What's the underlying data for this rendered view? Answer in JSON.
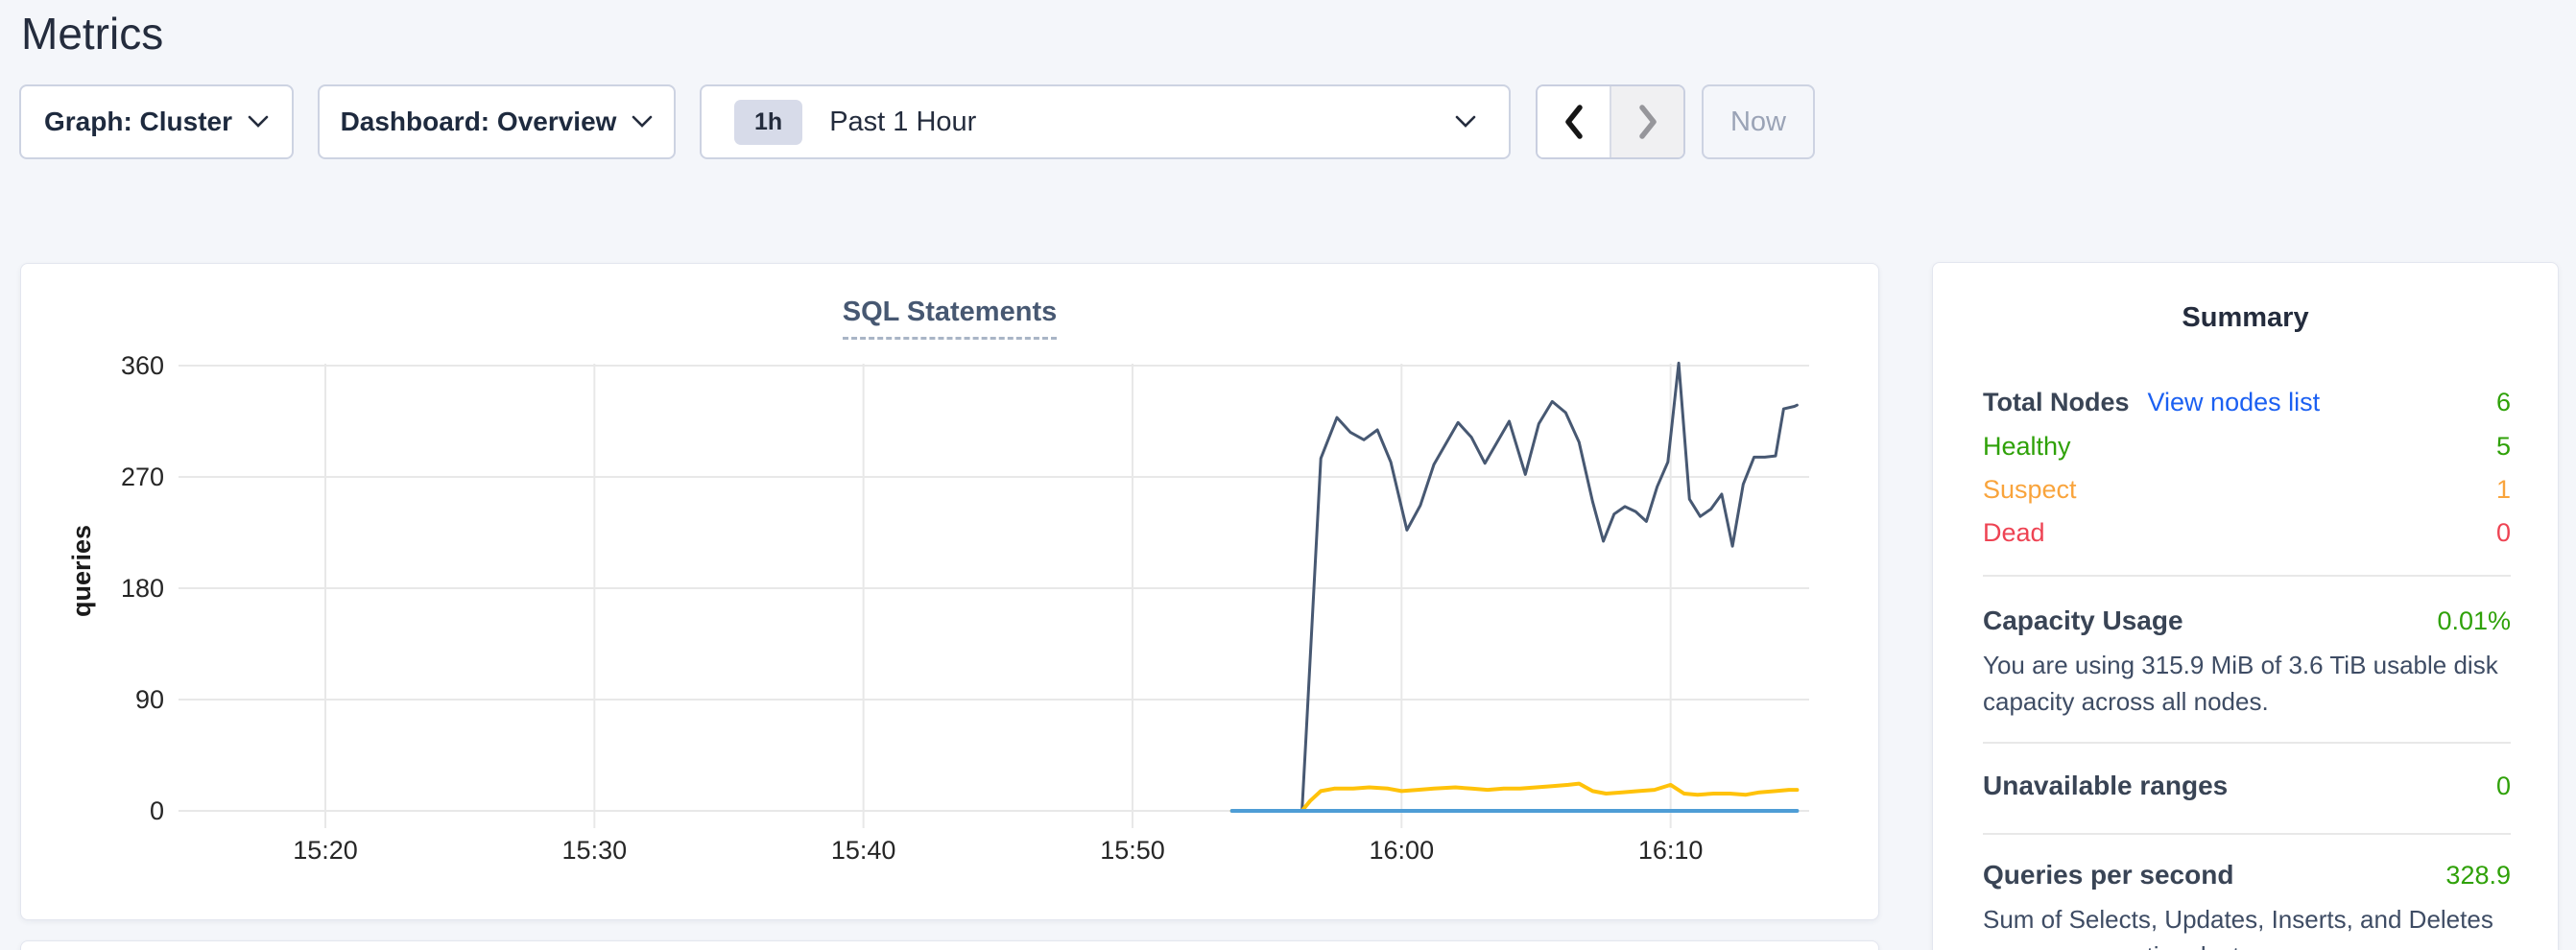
{
  "page": {
    "title": "Metrics",
    "background_color": "#f4f6fa"
  },
  "toolbar": {
    "graph_dropdown_label": "Graph: Cluster",
    "dashboard_dropdown_label": "Dashboard: Overview",
    "time_range": {
      "badge": "1h",
      "label": "Past 1 Hour"
    },
    "now_button_label": "Now"
  },
  "chart_panel": {
    "title": "SQL Statements",
    "ylabel": "queries"
  },
  "chart_data": {
    "type": "line",
    "title": "SQL Statements",
    "xlabel": "",
    "ylabel": "queries",
    "x_unit": "minutes after 15:00",
    "x_domain": [
      14.55,
      75.15
    ],
    "ylim": [
      0,
      375
    ],
    "y_ticks": [
      0,
      90,
      180,
      270,
      360
    ],
    "x_ticks": [
      {
        "t": 20,
        "label": "15:20"
      },
      {
        "t": 30,
        "label": "15:30"
      },
      {
        "t": 40,
        "label": "15:40"
      },
      {
        "t": 50,
        "label": "15:50"
      },
      {
        "t": 60,
        "label": "16:00"
      },
      {
        "t": 70,
        "label": "16:10"
      }
    ],
    "grid": true,
    "grid_color": "#e8e8e8",
    "legend": false,
    "series": [
      {
        "name": "queries-dark-blue",
        "color": "#475872",
        "stroke_width": 3,
        "points": [
          [
            53.7,
            0
          ],
          [
            56.3,
            0
          ],
          [
            56.45,
            60
          ],
          [
            57.0,
            285
          ],
          [
            57.6,
            318
          ],
          [
            58.1,
            306
          ],
          [
            58.6,
            300
          ],
          [
            59.1,
            308
          ],
          [
            59.6,
            282
          ],
          [
            60.2,
            227
          ],
          [
            60.7,
            247
          ],
          [
            61.2,
            280
          ],
          [
            62.1,
            314
          ],
          [
            62.6,
            302
          ],
          [
            63.1,
            281
          ],
          [
            64.0,
            315
          ],
          [
            64.6,
            272
          ],
          [
            65.1,
            313
          ],
          [
            65.6,
            331
          ],
          [
            66.1,
            322
          ],
          [
            66.6,
            298
          ],
          [
            67.1,
            250
          ],
          [
            67.5,
            218
          ],
          [
            67.9,
            240
          ],
          [
            68.3,
            246
          ],
          [
            68.7,
            242
          ],
          [
            69.1,
            234
          ],
          [
            69.5,
            262
          ],
          [
            69.9,
            282
          ],
          [
            70.3,
            362
          ],
          [
            70.7,
            252
          ],
          [
            71.1,
            238
          ],
          [
            71.5,
            244
          ],
          [
            71.9,
            256
          ],
          [
            72.3,
            214
          ],
          [
            72.7,
            264
          ],
          [
            73.1,
            286
          ],
          [
            73.5,
            286
          ],
          [
            73.9,
            287
          ],
          [
            74.2,
            325
          ],
          [
            74.6,
            327
          ],
          [
            74.7,
            328
          ]
        ]
      },
      {
        "name": "queries-yellow",
        "color": "#ffc20a",
        "stroke_width": 4,
        "points": [
          [
            53.7,
            0
          ],
          [
            56.3,
            0
          ],
          [
            56.6,
            8
          ],
          [
            57.0,
            16
          ],
          [
            57.5,
            18
          ],
          [
            58.2,
            18
          ],
          [
            58.8,
            19
          ],
          [
            59.5,
            18
          ],
          [
            60.0,
            16
          ],
          [
            60.6,
            17
          ],
          [
            61.2,
            18
          ],
          [
            62.0,
            19
          ],
          [
            62.6,
            18
          ],
          [
            63.2,
            17
          ],
          [
            63.8,
            18
          ],
          [
            64.4,
            18
          ],
          [
            65.0,
            19
          ],
          [
            65.6,
            20
          ],
          [
            66.2,
            21
          ],
          [
            66.6,
            22
          ],
          [
            67.1,
            16
          ],
          [
            67.6,
            14
          ],
          [
            68.2,
            15
          ],
          [
            68.8,
            16
          ],
          [
            69.4,
            17
          ],
          [
            70.0,
            21
          ],
          [
            70.5,
            14
          ],
          [
            71.0,
            13
          ],
          [
            71.6,
            14
          ],
          [
            72.2,
            14
          ],
          [
            72.8,
            13
          ],
          [
            73.3,
            15
          ],
          [
            73.9,
            16
          ],
          [
            74.4,
            17
          ],
          [
            74.7,
            17
          ]
        ]
      },
      {
        "name": "queries-light-blue",
        "color": "#4e9dd6",
        "stroke_width": 4,
        "points": [
          [
            53.7,
            0
          ],
          [
            74.7,
            0
          ]
        ]
      }
    ]
  },
  "summary": {
    "title": "Summary",
    "total_nodes": {
      "label": "Total Nodes",
      "link": "View nodes list",
      "value": "6"
    },
    "node_statuses": [
      {
        "label": "Healthy",
        "value": "5",
        "color": "#2fa108"
      },
      {
        "label": "Suspect",
        "value": "1",
        "color": "#f9a43c"
      },
      {
        "label": "Dead",
        "value": "0",
        "color": "#ee4353"
      }
    ],
    "capacity": {
      "label": "Capacity Usage",
      "value": "0.01%",
      "description": "You are using 315.9 MiB of 3.6 TiB usable disk capacity across all nodes."
    },
    "unavailable_ranges": {
      "label": "Unavailable ranges",
      "value": "0"
    },
    "qps": {
      "label": "Queries per second",
      "value": "328.9",
      "description": "Sum of Selects, Updates, Inserts, and Deletes across your entire cluster."
    },
    "colors": {
      "value_green": "#2fa108",
      "link_blue": "#1b60f2",
      "label_dark": "#394455"
    }
  }
}
